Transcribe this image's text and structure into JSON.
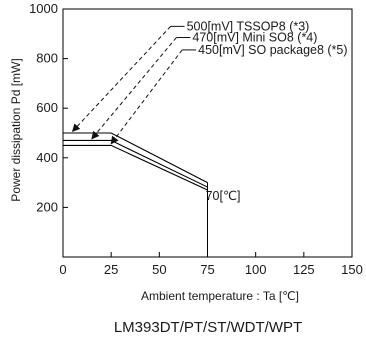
{
  "chart_data": {
    "type": "line",
    "title": "",
    "caption": "LM393DT/PT/ST/WDT/WPT",
    "xlabel": "Ambient temperature : Ta [℃]",
    "ylabel": "Power dissipation  Pd  [mW]",
    "xlim": [
      0,
      150
    ],
    "ylim": [
      0,
      1000
    ],
    "x_ticks": [
      "0",
      "25",
      "50",
      "75",
      "100",
      "125",
      "150"
    ],
    "y_ticks": [
      "200",
      "400",
      "600",
      "800",
      "1000"
    ],
    "grid": false,
    "series": [
      {
        "points": [
          [
            0,
            500
          ],
          [
            25,
            500
          ],
          [
            75,
            300
          ]
        ]
      },
      {
        "points": [
          [
            0,
            470
          ],
          [
            25,
            470
          ],
          [
            75,
            282
          ]
        ]
      },
      {
        "points": [
          [
            0,
            450
          ],
          [
            25,
            450
          ],
          [
            75,
            270
          ]
        ]
      }
    ],
    "annotations": [
      {
        "text": "500[mV]  TSSOP8 (*3)",
        "from": [
          60,
          930
        ],
        "to": [
          5,
          507
        ]
      },
      {
        "text": "470[mV]   Mini SO8 (*4)",
        "from": [
          63,
          885
        ],
        "to": [
          15,
          477
        ]
      },
      {
        "text": "450[mV]   SO package8 (*5)",
        "from": [
          66,
          835
        ],
        "to": [
          25,
          457
        ]
      },
      {
        "text": "70[℃]",
        "x": 74,
        "y": 230
      }
    ]
  }
}
